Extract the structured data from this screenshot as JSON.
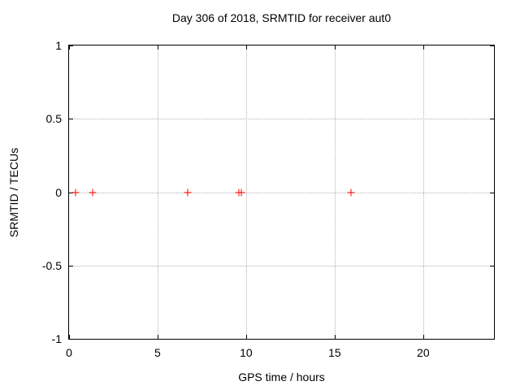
{
  "chart_data": {
    "type": "scatter",
    "title": "Day 306 of 2018, SRMTID for receiver aut0",
    "xlabel": "GPS time / hours",
    "ylabel": "SRMTID / TECUs",
    "xlim": [
      0,
      24
    ],
    "ylim": [
      -1,
      1
    ],
    "xticks": [
      {
        "v": 0,
        "label": "0"
      },
      {
        "v": 5,
        "label": "5"
      },
      {
        "v": 10,
        "label": "10"
      },
      {
        "v": 15,
        "label": "15"
      },
      {
        "v": 20,
        "label": "20"
      }
    ],
    "yticks": [
      {
        "v": -1,
        "label": "-1"
      },
      {
        "v": -0.5,
        "label": "-0.5"
      },
      {
        "v": 0,
        "label": "0"
      },
      {
        "v": 0.5,
        "label": "0.5"
      },
      {
        "v": 1,
        "label": "1"
      }
    ],
    "grid": true,
    "legend": "none",
    "series": [
      {
        "name": "SRMTID",
        "marker": "plus",
        "color": "#ff0000",
        "points": [
          [
            0.35,
            0
          ],
          [
            1.33,
            0
          ],
          [
            6.68,
            0
          ],
          [
            9.6,
            0
          ],
          [
            9.75,
            0
          ],
          [
            15.91,
            0
          ]
        ]
      }
    ]
  },
  "colors": {
    "marker": "#ff0000",
    "grid": "#b0b0b0",
    "border": "#000000",
    "background": "#ffffff",
    "text": "#000000"
  }
}
